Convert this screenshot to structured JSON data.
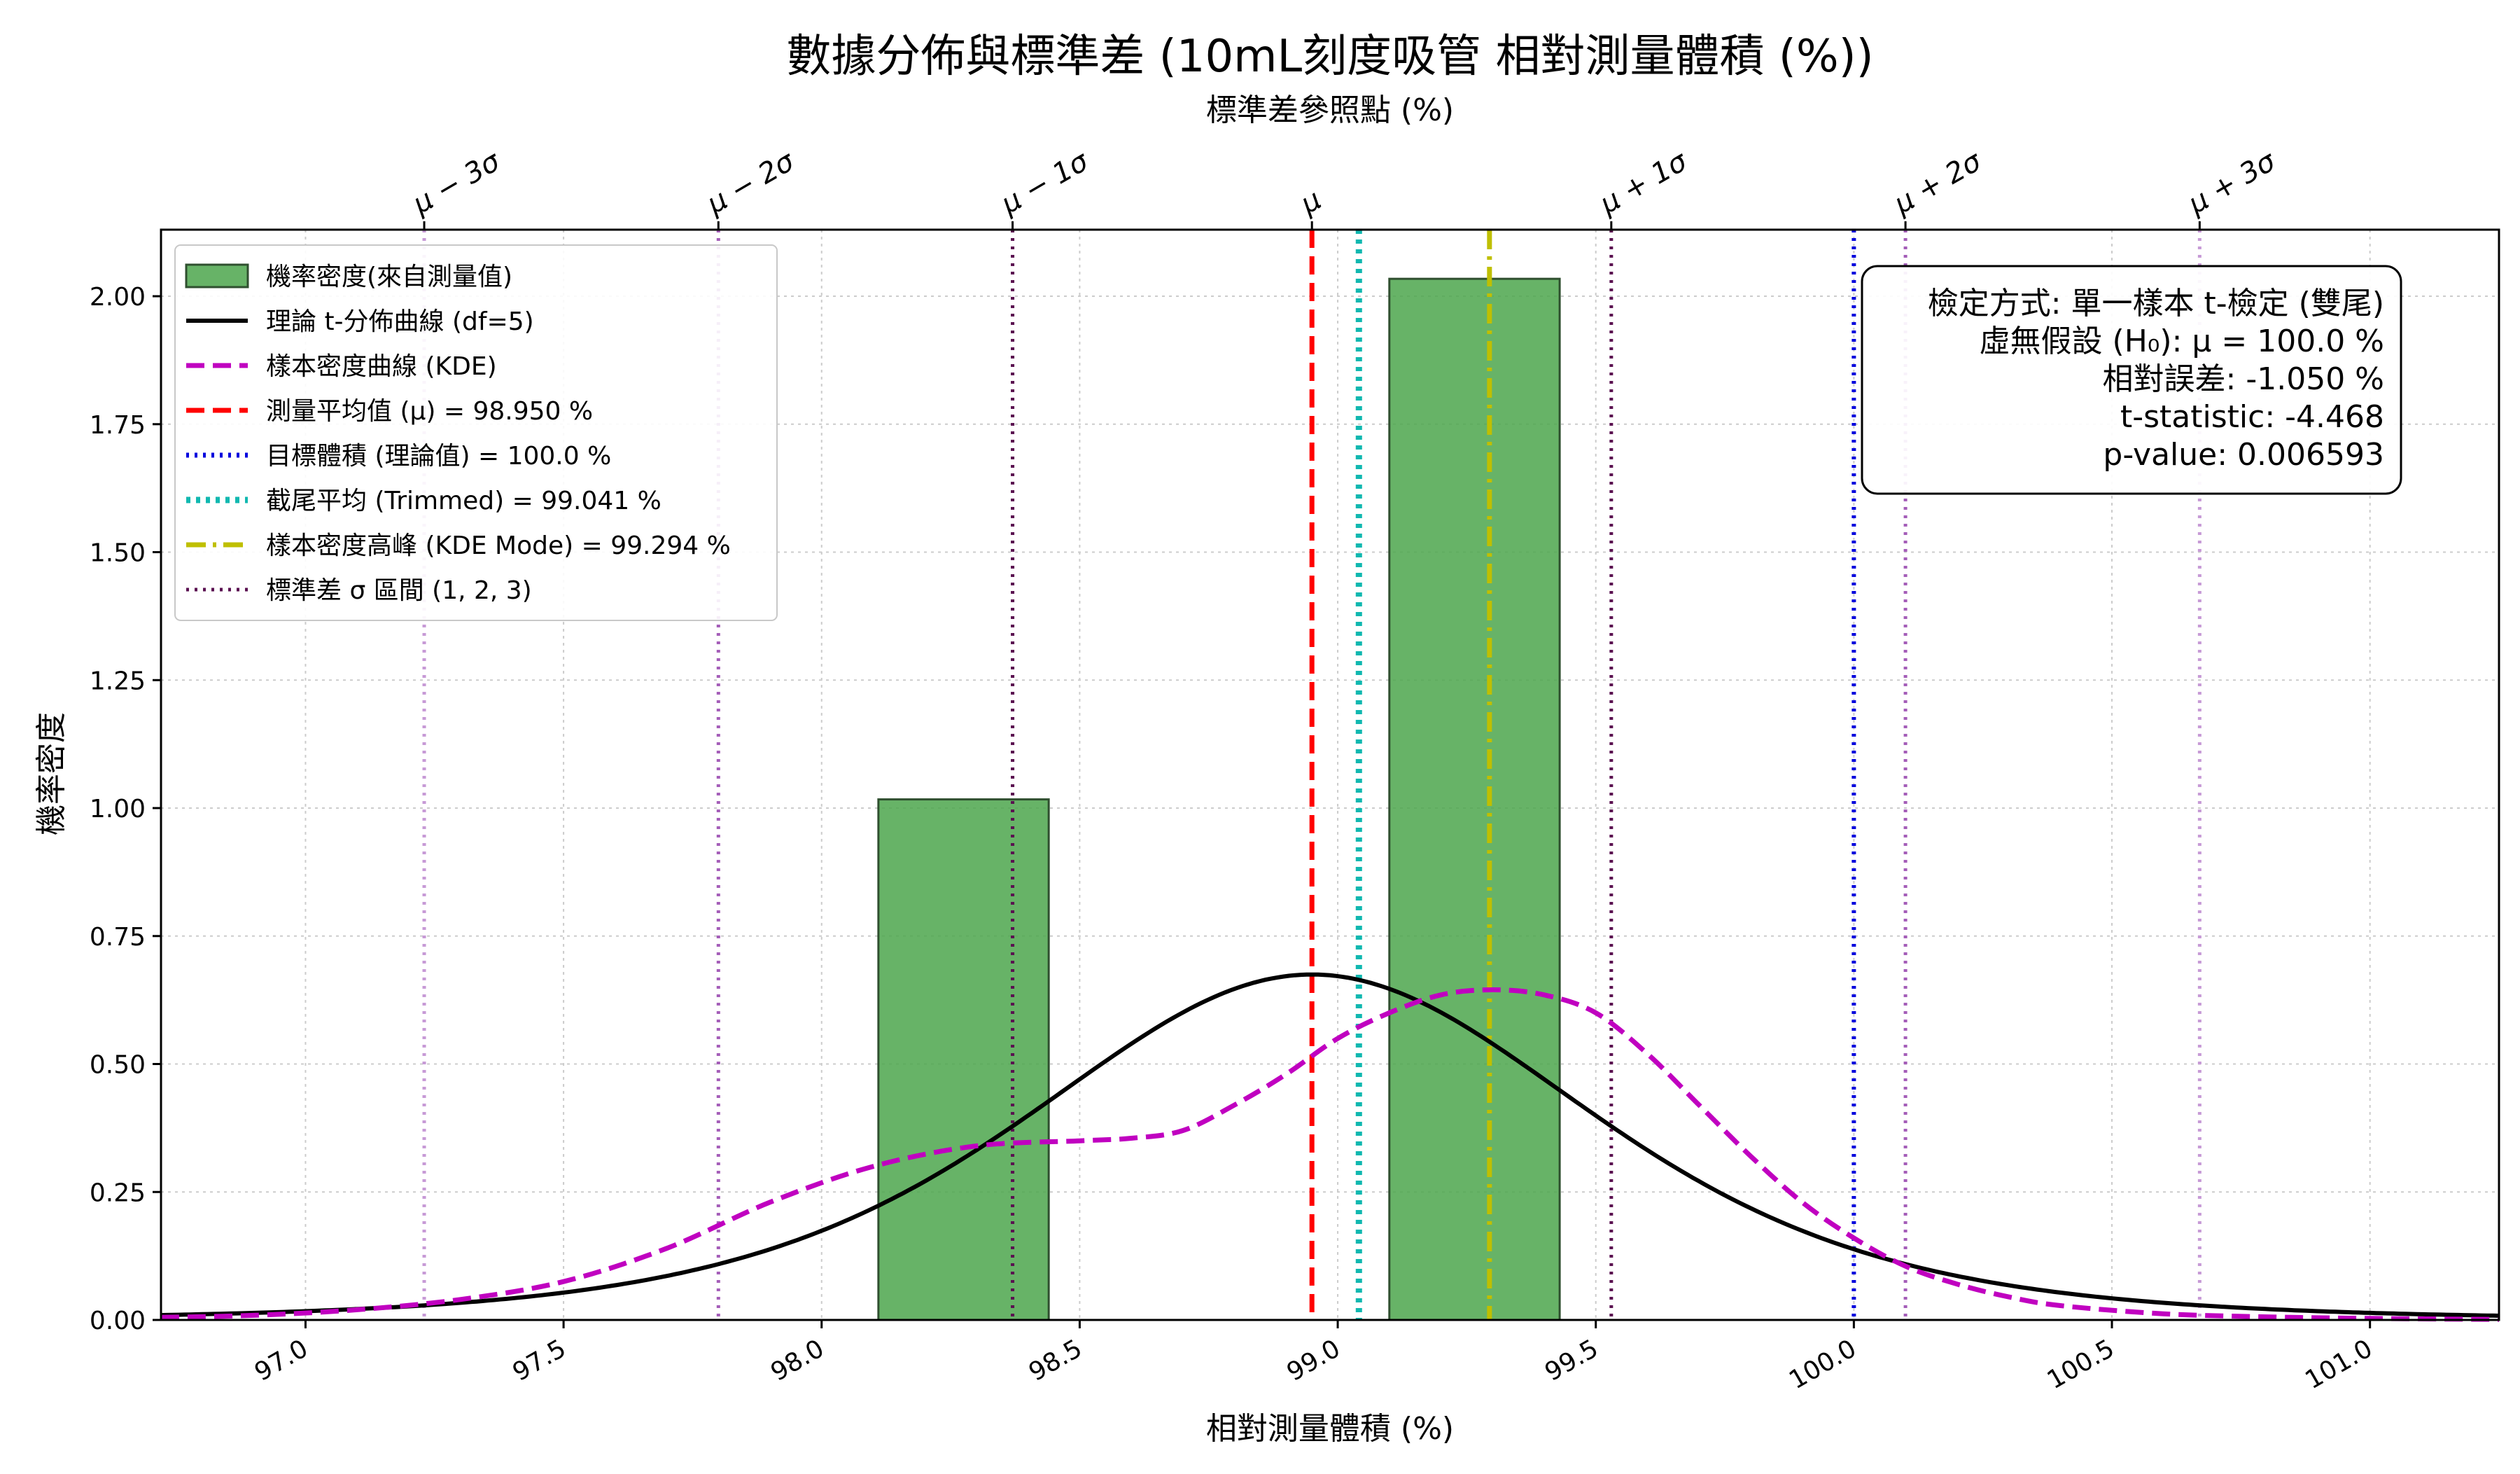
{
  "chart_data": {
    "type": "bar",
    "title": "數據分佈與標準差 (10mL刻度吸管 相對測量體積 (%))",
    "top_axis_label": "標準差參照點 (%)",
    "xlabel": "相對測量體積 (%)",
    "ylabel": "機率密度",
    "xlim": [
      96.72,
      101.25
    ],
    "ylim": [
      0,
      2.13
    ],
    "grid": true,
    "legend_position": "upper-left",
    "x_ticks": [
      97.0,
      97.5,
      98.0,
      98.5,
      99.0,
      99.5,
      100.0,
      100.5,
      101.0
    ],
    "x_tick_labels": [
      "97.0",
      "97.5",
      "98.0",
      "98.5",
      "99.0",
      "99.5",
      "100.0",
      "100.5",
      "101.0"
    ],
    "y_ticks": [
      0.0,
      0.25,
      0.5,
      0.75,
      1.0,
      1.25,
      1.5,
      1.75,
      2.0
    ],
    "y_tick_labels": [
      "0.00",
      "0.25",
      "0.50",
      "0.75",
      "1.00",
      "1.25",
      "1.50",
      "1.75",
      "2.00"
    ],
    "histogram": {
      "name": "機率密度(來自測量值)",
      "color": "#4ca64c",
      "edge_color": "#2f4f2f",
      "bins": [
        {
          "x0": 98.11,
          "x1": 98.44,
          "density": 1.017
        },
        {
          "x0": 98.44,
          "x1": 98.77,
          "density": 0.0
        },
        {
          "x0": 98.77,
          "x1": 99.1,
          "density": 0.0
        },
        {
          "x0": 99.1,
          "x1": 99.43,
          "density": 2.034
        }
      ]
    },
    "t_curve": {
      "name": "理論 t-分佈曲線 (df=5)",
      "color": "#000000",
      "mean": 98.95,
      "scale": 0.5625,
      "df": 5
    },
    "kde_curve": {
      "name": "樣本密度曲線 (KDE)",
      "color": "#c000c0",
      "points": [
        [
          96.72,
          0.005
        ],
        [
          96.9,
          0.009
        ],
        [
          97.1,
          0.02
        ],
        [
          97.3,
          0.04
        ],
        [
          97.5,
          0.075
        ],
        [
          97.7,
          0.14
        ],
        [
          97.9,
          0.23
        ],
        [
          98.1,
          0.3
        ],
        [
          98.3,
          0.34
        ],
        [
          98.5,
          0.35
        ],
        [
          98.6,
          0.355
        ],
        [
          98.7,
          0.37
        ],
        [
          98.8,
          0.42
        ],
        [
          98.9,
          0.48
        ],
        [
          99.0,
          0.55
        ],
        [
          99.1,
          0.6
        ],
        [
          99.2,
          0.635
        ],
        [
          99.3,
          0.645
        ],
        [
          99.4,
          0.635
        ],
        [
          99.5,
          0.6
        ],
        [
          99.6,
          0.52
        ],
        [
          99.7,
          0.42
        ],
        [
          99.8,
          0.32
        ],
        [
          99.9,
          0.23
        ],
        [
          100.0,
          0.16
        ],
        [
          100.1,
          0.105
        ],
        [
          100.2,
          0.07
        ],
        [
          100.3,
          0.045
        ],
        [
          100.4,
          0.028
        ],
        [
          100.6,
          0.012
        ],
        [
          100.8,
          0.006
        ],
        [
          101.0,
          0.003
        ],
        [
          101.25,
          0.001
        ]
      ]
    },
    "vlines": [
      {
        "name": "測量平均值 (μ) = 98.950 %",
        "x": 98.95,
        "color": "#ff0000",
        "style": "dashed"
      },
      {
        "name": "目標體積 (理論值) = 100.0 %",
        "x": 100.0,
        "color": "#0000dd",
        "style": "dotted"
      },
      {
        "name": "截尾平均 (Trimmed) = 99.041 %",
        "x": 99.041,
        "color": "#10b8b0",
        "style": "dotted-thick"
      },
      {
        "name": "樣本密度高峰 (KDE Mode) = 99.294 %",
        "x": 99.294,
        "color": "#bfbf00",
        "style": "dashdot"
      }
    ],
    "sigma_lines": {
      "name": "標準差 σ 區間 (1, 2, 3)",
      "positions": [
        97.23,
        97.8,
        98.37,
        99.53,
        100.1,
        100.67
      ],
      "colors": [
        "#c79ad6",
        "#a45db8",
        "#5a1050",
        "#5a1050",
        "#a45db8",
        "#c79ad6"
      ]
    },
    "top_ticks": [
      {
        "x": 97.23,
        "label": "μ − 3σ"
      },
      {
        "x": 97.8,
        "label": "μ − 2σ"
      },
      {
        "x": 98.37,
        "label": "μ − 1σ"
      },
      {
        "x": 98.95,
        "label": "μ"
      },
      {
        "x": 99.53,
        "label": "μ + 1σ"
      },
      {
        "x": 100.1,
        "label": "μ + 2σ"
      },
      {
        "x": 100.67,
        "label": "μ + 3σ"
      }
    ],
    "stats_box": [
      "檢定方式: 單一樣本 t-檢定 (雙尾)",
      "虛無假設 (H₀): μ = 100.0 %",
      "相對誤差: -1.050 %",
      "t-statistic: -4.468",
      "p-value: 0.006593"
    ]
  }
}
